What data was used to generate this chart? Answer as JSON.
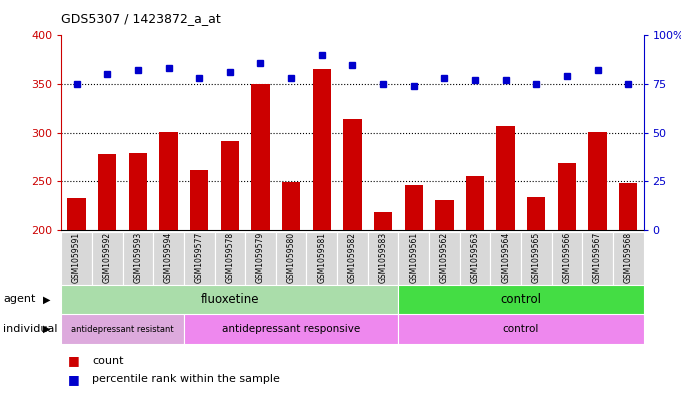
{
  "title": "GDS5307 / 1423872_a_at",
  "samples": [
    "GSM1059591",
    "GSM1059592",
    "GSM1059593",
    "GSM1059594",
    "GSM1059577",
    "GSM1059578",
    "GSM1059579",
    "GSM1059580",
    "GSM1059581",
    "GSM1059582",
    "GSM1059583",
    "GSM1059561",
    "GSM1059562",
    "GSM1059563",
    "GSM1059564",
    "GSM1059565",
    "GSM1059566",
    "GSM1059567",
    "GSM1059568"
  ],
  "counts": [
    233,
    278,
    279,
    301,
    262,
    291,
    350,
    249,
    365,
    314,
    218,
    246,
    231,
    255,
    307,
    234,
    269,
    301,
    248
  ],
  "percentiles": [
    75,
    80,
    82,
    83,
    78,
    81,
    86,
    78,
    90,
    85,
    75,
    74,
    78,
    77,
    77,
    75,
    79,
    82,
    75
  ],
  "ylim_left": [
    200,
    400
  ],
  "ylim_right": [
    0,
    100
  ],
  "yticks_left": [
    200,
    250,
    300,
    350,
    400
  ],
  "yticks_right": [
    0,
    25,
    50,
    75,
    100
  ],
  "bar_color": "#cc0000",
  "dot_color": "#0000cc",
  "agent_fluoxetine_color": "#aaddaa",
  "agent_control_color": "#44dd44",
  "individual_resistant_color": "#ddaadd",
  "individual_responsive_color": "#ee88ee",
  "individual_control_color": "#ee88ee",
  "fluoxetine_count": 11,
  "control_count": 8,
  "resistant_count": 4,
  "responsive_count": 7,
  "agent_label": "agent",
  "individual_label": "individual",
  "agent_fluoxetine_text": "fluoxetine",
  "agent_control_text": "control",
  "individual_resistant_text": "antidepressant resistant",
  "individual_responsive_text": "antidepressant responsive",
  "individual_control_text": "control",
  "legend_count_text": "count",
  "legend_percentile_text": "percentile rank within the sample"
}
